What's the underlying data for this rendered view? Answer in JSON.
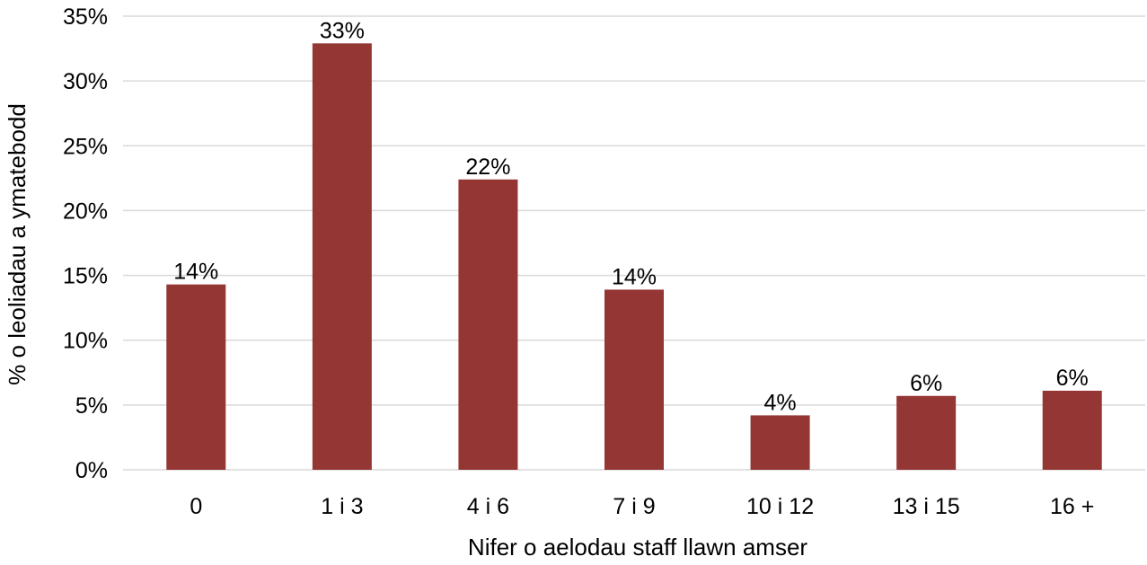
{
  "chart_data": {
    "type": "bar",
    "categories": [
      "0",
      "1 i 3",
      "4 i 6",
      "7 i 9",
      "10 i 12",
      "13 i 15",
      "16 +"
    ],
    "values": [
      14.3,
      32.9,
      22.4,
      13.9,
      4.2,
      5.7,
      6.1
    ],
    "data_labels": [
      "14%",
      "33%",
      "22%",
      "14%",
      "4%",
      "6%",
      "6%"
    ],
    "title": "",
    "xlabel": "Nifer o aelodau staff llawn amser",
    "ylabel": "% o leoliadau a ymatebodd",
    "ylim": [
      0,
      35
    ],
    "yticks": [
      0,
      5,
      10,
      15,
      20,
      25,
      30,
      35
    ],
    "ytick_labels": [
      "0%",
      "5%",
      "10%",
      "15%",
      "20%",
      "25%",
      "30%",
      "35%"
    ],
    "grid": true,
    "legend": "none",
    "bar_color": "#943634"
  }
}
